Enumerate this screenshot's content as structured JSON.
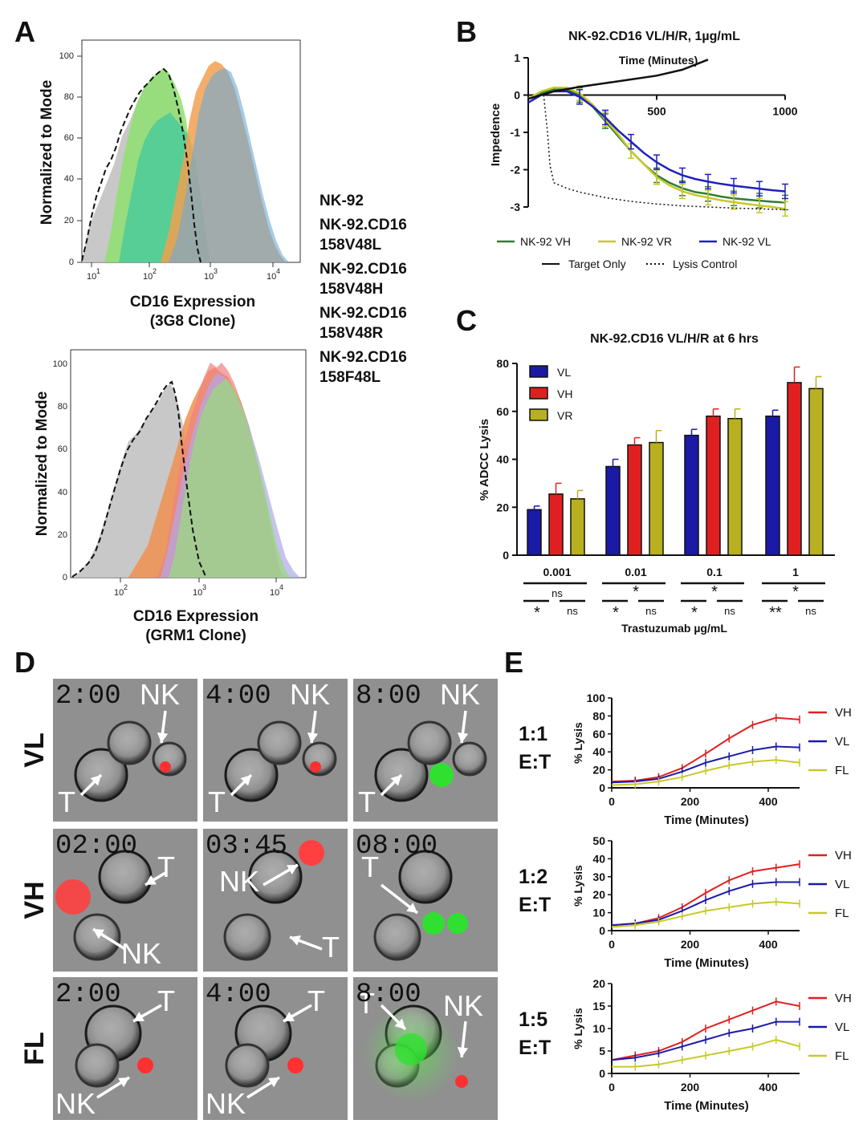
{
  "panels": {
    "A": "A",
    "B": "B",
    "C": "C",
    "D": "D",
    "E": "E"
  },
  "panel_a": {
    "top": {
      "ylabel": "Normalized to Mode",
      "xlabel_line1": "CD16 Expression",
      "xlabel_line2": "(3G8 Clone)",
      "yticks": [
        "0",
        "20",
        "40",
        "60",
        "80",
        "100"
      ],
      "xticks": [
        "10",
        "10",
        "10",
        "10"
      ],
      "xtick_exps": [
        "1",
        "2",
        "3",
        "4"
      ]
    },
    "bottom": {
      "ylabel": "Normalized to Mode",
      "xlabel_line1": "CD16 Expression",
      "xlabel_line2": "(GRM1 Clone)",
      "yticks": [
        "0",
        "20",
        "40",
        "60",
        "80",
        "100"
      ],
      "xticks": [
        "10",
        "10",
        "10"
      ],
      "xtick_exps": [
        "2",
        "3",
        "4"
      ]
    },
    "legend": [
      {
        "line1": "NK-92",
        "line2": "",
        "color": "#111111"
      },
      {
        "line1": "NK-92.CD16",
        "line2": "158V48L",
        "color": "#1a1aa6"
      },
      {
        "line1": "NK-92.CD16",
        "line2": "158V48H",
        "color": "#e02020"
      },
      {
        "line1": "NK-92.CD16",
        "line2": "158V48R",
        "color": "#f08a1c"
      },
      {
        "line1": "NK-92.CD16",
        "line2": "158F48L",
        "color": "#a6d21c"
      }
    ],
    "colors": {
      "nk92": "#bdbdbd",
      "vl": "#5e9fd0",
      "vh": "#f08080",
      "vr": "#f0a050",
      "fl": "#7ad84a",
      "teal": "#3cc8a0"
    }
  },
  "panel_b": {
    "title": "NK-92.CD16 VL/H/R, 1µg/mL",
    "ylabel": "Impedence",
    "xlabel": "Time (Minutes)",
    "legend": [
      "NK-92 VH",
      "NK-92 VR",
      "NK-92 VL",
      "Target Only",
      "Lysis Control"
    ]
  },
  "panel_c": {
    "title": "NK-92.CD16 VL/H/R at 6 hrs",
    "ylabel": "% ADCC Lysis",
    "xlabel": "Trastuzumab µg/mL",
    "sig": [
      {
        "top": "ns",
        "left": "*",
        "right": "ns"
      },
      {
        "top": "*",
        "left": "*",
        "right": "ns"
      },
      {
        "top": "*",
        "left": "*",
        "right": "ns"
      },
      {
        "top": "*",
        "left": "**",
        "right": "ns"
      }
    ]
  },
  "panel_d": {
    "rows": [
      {
        "label": "VL",
        "times": [
          "2:00",
          "4:00",
          "8:00"
        ]
      },
      {
        "label": "VH",
        "times": [
          "02:00",
          "03:45",
          "08:00"
        ]
      },
      {
        "label": "FL",
        "times": [
          "2:00",
          "4:00",
          "8:00"
        ]
      }
    ],
    "cell_labels": {
      "nk": "NK",
      "t": "T"
    }
  },
  "panel_e": {
    "xlabel": "Time (Minutes)",
    "ylabel": "% Lysis",
    "plots": [
      {
        "ratio": "1:1",
        "et": "E:T"
      },
      {
        "ratio": "1:2",
        "et": "E:T"
      },
      {
        "ratio": "1:5",
        "et": "E:T"
      }
    ],
    "legend": [
      "VH",
      "VL",
      "FL"
    ],
    "colors": {
      "VH": "#e02020",
      "VL": "#1a1aa6",
      "FL": "#c8c82a"
    }
  },
  "chart_data": [
    {
      "type": "line",
      "title": "NK-92.CD16 VL/H/R, 1µg/mL",
      "xlabel": "Time (Minutes)",
      "ylabel": "Impedence",
      "xlim": [
        0,
        1000
      ],
      "ylim": [
        -3.3,
        1
      ],
      "xticks": [
        500,
        1000
      ],
      "yticks": [
        1,
        0,
        -1,
        -2,
        -3
      ],
      "series": [
        {
          "name": "NK-92 VH",
          "color": "#2e7d32",
          "x": [
            0,
            50,
            100,
            150,
            200,
            250,
            300,
            350,
            400,
            450,
            500,
            550,
            600,
            650,
            700,
            750,
            800,
            850,
            900,
            950,
            1000
          ],
          "y": [
            -0.1,
            0.05,
            0.15,
            0.15,
            0.0,
            -0.3,
            -0.7,
            -1.1,
            -1.5,
            -1.85,
            -2.15,
            -2.35,
            -2.5,
            -2.6,
            -2.65,
            -2.72,
            -2.77,
            -2.8,
            -2.83,
            -2.86,
            -2.88
          ]
        },
        {
          "name": "NK-92 VR",
          "color": "#c8c82a",
          "x": [
            0,
            50,
            100,
            150,
            200,
            250,
            300,
            350,
            400,
            450,
            500,
            550,
            600,
            650,
            700,
            750,
            800,
            850,
            900,
            950,
            1000
          ],
          "y": [
            -0.1,
            0.1,
            0.2,
            0.2,
            0.05,
            -0.25,
            -0.65,
            -1.05,
            -1.5,
            -1.85,
            -2.2,
            -2.42,
            -2.58,
            -2.68,
            -2.75,
            -2.82,
            -2.87,
            -2.92,
            -2.96,
            -3.0,
            -3.05
          ]
        },
        {
          "name": "NK-92 VL",
          "color": "#2020c0",
          "x": [
            0,
            50,
            100,
            150,
            200,
            250,
            300,
            350,
            400,
            450,
            500,
            550,
            600,
            650,
            700,
            750,
            800,
            850,
            900,
            950,
            1000
          ],
          "y": [
            -0.2,
            0.0,
            0.1,
            0.1,
            -0.05,
            -0.3,
            -0.6,
            -0.95,
            -1.25,
            -1.55,
            -1.8,
            -2.0,
            -2.15,
            -2.25,
            -2.32,
            -2.38,
            -2.43,
            -2.47,
            -2.51,
            -2.55,
            -2.58
          ]
        },
        {
          "name": "Target Only",
          "color": "#111111",
          "x": [
            0,
            100,
            200,
            300,
            400,
            500,
            600,
            700
          ],
          "y": [
            -0.1,
            0.1,
            0.22,
            0.32,
            0.42,
            0.52,
            0.68,
            0.95
          ]
        },
        {
          "name": "Lysis Control",
          "color": "#111111",
          "dash": "dotted",
          "x": [
            60,
            75,
            85,
            100,
            150,
            200,
            300,
            400,
            500,
            600,
            700,
            800,
            900,
            1000
          ],
          "y": [
            0,
            -1.0,
            -1.9,
            -2.35,
            -2.5,
            -2.6,
            -2.75,
            -2.85,
            -2.92,
            -2.97,
            -3.0,
            -3.03,
            -3.05,
            -3.07
          ]
        }
      ]
    },
    {
      "type": "bar",
      "title": "NK-92.CD16 VL/H/R at 6 hrs",
      "xlabel": "Trastuzumab µg/mL",
      "ylabel": "% ADCC Lysis",
      "categories": [
        "0.001",
        "0.01",
        "0.1",
        "1"
      ],
      "ylim": [
        0,
        80
      ],
      "yticks": [
        0,
        20,
        40,
        60,
        80
      ],
      "legend_position": "top-left",
      "series": [
        {
          "name": "VL",
          "color": "#1a1aa6",
          "values": [
            19,
            37,
            50,
            58
          ],
          "errors": [
            1.5,
            3,
            2.5,
            2.5
          ]
        },
        {
          "name": "VH",
          "color": "#e02020",
          "values": [
            25.5,
            46,
            58,
            72
          ],
          "errors": [
            4.5,
            3,
            3,
            6.5
          ]
        },
        {
          "name": "VR",
          "color": "#b8b020",
          "values": [
            23.5,
            47,
            57,
            69.5
          ],
          "errors": [
            3.5,
            5,
            4,
            5
          ]
        }
      ]
    },
    {
      "type": "line",
      "title": "1:1 E:T",
      "xlabel": "Time (Minutes)",
      "ylabel": "% Lysis",
      "xlim": [
        0,
        480
      ],
      "ylim": [
        0,
        100
      ],
      "xticks": [
        0,
        200,
        400
      ],
      "yticks": [
        0,
        20,
        40,
        60,
        80,
        100
      ],
      "series": [
        {
          "name": "VH",
          "color": "#e02020",
          "x": [
            0,
            60,
            120,
            180,
            240,
            300,
            360,
            420,
            480
          ],
          "y": [
            7,
            8,
            12,
            22,
            38,
            55,
            70,
            78,
            76
          ]
        },
        {
          "name": "VL",
          "color": "#1a1aa6",
          "x": [
            0,
            60,
            120,
            180,
            240,
            300,
            360,
            420,
            480
          ],
          "y": [
            6,
            7,
            10,
            18,
            28,
            35,
            42,
            46,
            45
          ]
        },
        {
          "name": "FL",
          "color": "#c8c82a",
          "x": [
            0,
            60,
            120,
            180,
            240,
            300,
            360,
            420,
            480
          ],
          "y": [
            3,
            4,
            7,
            12,
            19,
            25,
            29,
            31,
            28
          ]
        }
      ]
    },
    {
      "type": "line",
      "title": "1:2 E:T",
      "xlabel": "Time (Minutes)",
      "ylabel": "% Lysis",
      "xlim": [
        0,
        480
      ],
      "ylim": [
        0,
        50
      ],
      "xticks": [
        0,
        200,
        400
      ],
      "yticks": [
        0,
        10,
        20,
        30,
        40,
        50
      ],
      "series": [
        {
          "name": "VH",
          "color": "#e02020",
          "x": [
            0,
            60,
            120,
            180,
            240,
            300,
            360,
            420,
            480
          ],
          "y": [
            3,
            4,
            7,
            13,
            21,
            28,
            33,
            35,
            37
          ]
        },
        {
          "name": "VL",
          "color": "#1a1aa6",
          "x": [
            0,
            60,
            120,
            180,
            240,
            300,
            360,
            420,
            480
          ],
          "y": [
            3,
            4,
            6,
            11,
            17,
            22,
            26,
            27,
            27
          ]
        },
        {
          "name": "FL",
          "color": "#c8c82a",
          "x": [
            0,
            60,
            120,
            180,
            240,
            300,
            360,
            420,
            480
          ],
          "y": [
            2,
            3,
            5,
            8,
            11,
            13,
            15,
            16,
            15
          ]
        }
      ]
    },
    {
      "type": "line",
      "title": "1:5 E:T",
      "xlabel": "Time (Minutes)",
      "ylabel": "% Lysis",
      "xlim": [
        0,
        480
      ],
      "ylim": [
        0,
        20
      ],
      "xticks": [
        0,
        200,
        400
      ],
      "yticks": [
        0,
        5,
        10,
        15,
        20
      ],
      "series": [
        {
          "name": "VH",
          "color": "#e02020",
          "x": [
            0,
            60,
            120,
            180,
            240,
            300,
            360,
            420,
            480
          ],
          "y": [
            3,
            4,
            5,
            7,
            10,
            12,
            14,
            16,
            15
          ]
        },
        {
          "name": "VL",
          "color": "#1a1aa6",
          "x": [
            0,
            60,
            120,
            180,
            240,
            300,
            360,
            420,
            480
          ],
          "y": [
            3,
            3.5,
            4.5,
            6,
            7.5,
            9,
            10,
            11.5,
            11.5
          ]
        },
        {
          "name": "FL",
          "color": "#c8c82a",
          "x": [
            0,
            60,
            120,
            180,
            240,
            300,
            360,
            420,
            480
          ],
          "y": [
            1.5,
            1.5,
            2,
            3,
            4,
            5,
            6,
            7.5,
            6
          ]
        }
      ]
    }
  ]
}
